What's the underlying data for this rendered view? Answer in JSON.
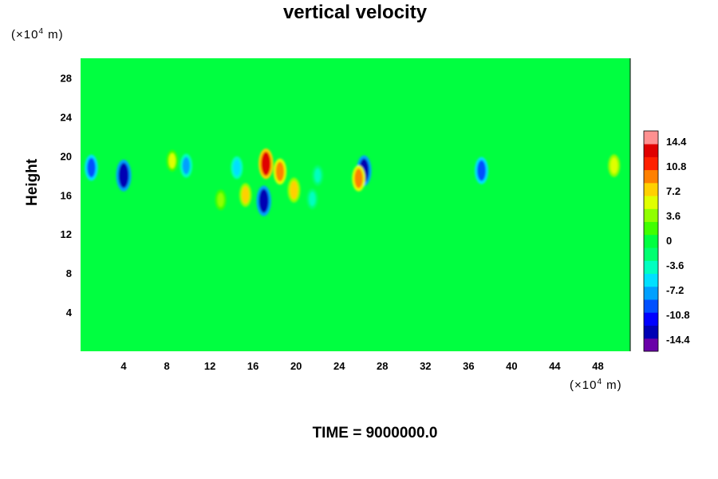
{
  "chart_data": {
    "type": "heatmap",
    "title": "vertical velocity",
    "ylabel": "Height",
    "x_unit": {
      "prefix": "(×10",
      "exp": "4",
      "suffix": " m)"
    },
    "y_unit": {
      "prefix": "(×10",
      "exp": "4",
      "suffix": " m)"
    },
    "x_ticks": [
      4,
      8,
      12,
      16,
      20,
      24,
      28,
      32,
      36,
      40,
      44,
      48
    ],
    "y_ticks": [
      4,
      8,
      12,
      16,
      20,
      24,
      28
    ],
    "xlim": [
      0,
      51
    ],
    "ylim": [
      0,
      30
    ],
    "background_value": 0,
    "colorbar": {
      "labels": [
        "14.4",
        "10.8",
        "7.2",
        "3.6",
        "0",
        "-3.6",
        "-7.2",
        "-10.8",
        "-14.4"
      ],
      "range": [
        -16,
        16
      ],
      "colors": [
        "#6a00a8",
        "#0000b4",
        "#0000ff",
        "#0050ff",
        "#00a0ff",
        "#00e0ff",
        "#00ffc0",
        "#00ff70",
        "#00ff40",
        "#40ff00",
        "#90ff00",
        "#e0ff00",
        "#ffd000",
        "#ff8000",
        "#ff2000",
        "#e00000",
        "#ff9090"
      ]
    },
    "features": [
      {
        "x": 4.0,
        "y": 18.0,
        "value": -14
      },
      {
        "x": 1.0,
        "y": 18.8,
        "value": -9
      },
      {
        "x": 9.8,
        "y": 19.0,
        "value": -7
      },
      {
        "x": 14.5,
        "y": 18.8,
        "value": -6
      },
      {
        "x": 17.2,
        "y": 19.2,
        "value": 13
      },
      {
        "x": 18.5,
        "y": 18.4,
        "value": 9
      },
      {
        "x": 17.0,
        "y": 15.4,
        "value": -13
      },
      {
        "x": 15.3,
        "y": 16.0,
        "value": 7
      },
      {
        "x": 19.8,
        "y": 16.5,
        "value": 8
      },
      {
        "x": 26.3,
        "y": 18.5,
        "value": -13
      },
      {
        "x": 25.8,
        "y": 17.7,
        "value": 9
      },
      {
        "x": 37.2,
        "y": 18.5,
        "value": -10
      },
      {
        "x": 8.5,
        "y": 19.5,
        "value": 5
      },
      {
        "x": 22.0,
        "y": 18.0,
        "value": -4
      },
      {
        "x": 49.5,
        "y": 19.0,
        "value": 6
      },
      {
        "x": 21.5,
        "y": 15.6,
        "value": -4
      },
      {
        "x": 13.0,
        "y": 15.5,
        "value": 4
      }
    ]
  },
  "footer": {
    "label": "TIME = 9000000.0"
  }
}
